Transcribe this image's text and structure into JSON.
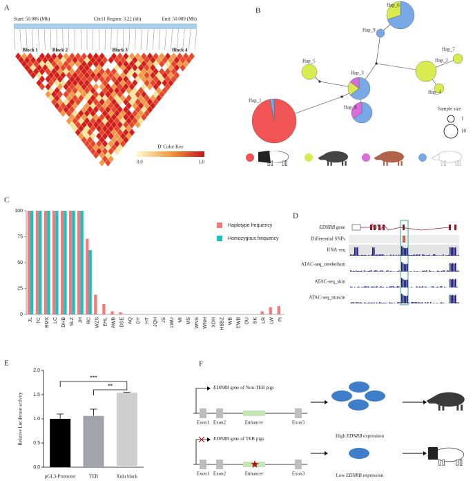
{
  "panel_labels": [
    "A",
    "B",
    "C",
    "D",
    "E",
    "F"
  ],
  "ld_plot": {
    "start": "Start: 50.086 (Mb)",
    "region": "Chr11 Region: 3.22 (kb)",
    "end": "End: 50.089 (Mb)",
    "blocks": [
      "Block 1",
      "Block 2",
      "Block 3",
      "Block 4"
    ],
    "color_key": {
      "title": "D' Color Key",
      "min": "0.0",
      "max": "1.0"
    }
  },
  "network": {
    "nodes": [
      "Hap_1",
      "Hap_2",
      "Hap_3",
      "Hap_4",
      "Hap_5",
      "Hap_6",
      "Hap_7",
      "Hap_8",
      "Hap_9"
    ],
    "sample_size": {
      "title": "Sample size",
      "small": "1",
      "large": "10"
    }
  },
  "tracks": {
    "gene": [
      "EDNRB",
      " gene"
    ],
    "rows": [
      "Differential SNPs",
      "RNA-seq",
      "ATAC-seq_cerebellum",
      "ATAC-seq_skin",
      "ATAC-seq_muscle"
    ]
  },
  "chart_data": [
    {
      "type": "bar",
      "categories": [
        "JL",
        "TC",
        "BMX",
        "LC",
        "DHB",
        "SLZ",
        "JH",
        "RC",
        "WZS",
        "EHL",
        "AWB",
        "DSE",
        "AQ",
        "DY",
        "HT",
        "JQH",
        "JS",
        "LWU",
        "MI",
        "MS",
        "WNS",
        "WNH",
        "XDH",
        "HBBZ",
        "WB",
        "EWB",
        "DU",
        "BK",
        "LR",
        "LW",
        "PI"
      ],
      "category_label_colors": [
        "#d62728",
        "#d62728",
        "#d62728",
        "#d62728",
        "#d62728",
        "#d62728",
        "#d62728",
        "#333333",
        "#333333",
        "#333333",
        "#333333",
        "#333333",
        "#333333",
        "#333333",
        "#333333",
        "#333333",
        "#333333",
        "#333333",
        "#333333",
        "#333333",
        "#333333",
        "#333333",
        "#333333",
        "#333333",
        "#333333",
        "#333333",
        "#333333",
        "#333333",
        "#333333",
        "#333333",
        "#333333"
      ],
      "series": [
        {
          "name": "Haplotype frequency",
          "color": "#ef7b7b",
          "values": [
            100,
            100,
            100,
            100,
            100,
            100,
            100,
            73,
            19,
            10,
            3,
            2,
            0,
            0,
            0,
            0,
            0,
            0,
            0,
            0,
            0,
            0,
            0,
            0,
            0,
            0,
            0,
            0,
            3,
            7,
            8
          ]
        },
        {
          "name": "Homozygous frequency",
          "color": "#1fbfbf",
          "values": [
            100,
            100,
            100,
            100,
            100,
            100,
            100,
            62,
            0,
            0,
            0,
            0,
            0,
            0,
            0,
            0,
            0,
            0,
            0,
            0,
            0,
            0,
            0,
            0,
            0,
            0,
            0,
            0,
            0,
            0,
            0
          ]
        }
      ],
      "ylim": [
        0,
        100
      ],
      "yticks": [
        0,
        25,
        50,
        75,
        100
      ]
    },
    {
      "type": "errorbar",
      "ylabel": "Relative Luciferase activity",
      "categories": [
        "pGL3-Promoter",
        "TEB",
        "Xidu black"
      ],
      "values": [
        1.0,
        1.06,
        1.54
      ],
      "errors": [
        0.1,
        0.14,
        0.01
      ],
      "colors": [
        "#000000",
        "#a3a3ab",
        "#cfcfcf"
      ],
      "ylim": [
        0,
        2
      ],
      "yticks": [
        {
          "value": 0,
          "label": "0.0"
        },
        {
          "value": 0.5,
          "label": "0.5"
        },
        {
          "value": 1,
          "label": "1.0"
        },
        {
          "value": 1.5,
          "label": "1.5"
        },
        {
          "value": 2,
          "label": "2.0"
        }
      ],
      "annotations": [
        {
          "text": "***",
          "between": [
            "pGL3-Promoter",
            "Xidu black"
          ]
        },
        {
          "text": "**",
          "between": [
            "TEB",
            "Xidu black"
          ]
        }
      ]
    }
  ],
  "diagram": {
    "non_teb": [
      "EDNRB",
      " gene of Non-TEB pigs"
    ],
    "teb": [
      "EDNRB",
      " gene of TEB pigs"
    ],
    "parts": [
      "Exon1",
      "Exon2",
      "Enhancer",
      "Exon3"
    ],
    "high": [
      "High ",
      "EDNRB",
      " expression"
    ],
    "low": [
      "Low ",
      "EDNRB",
      " expression"
    ]
  }
}
